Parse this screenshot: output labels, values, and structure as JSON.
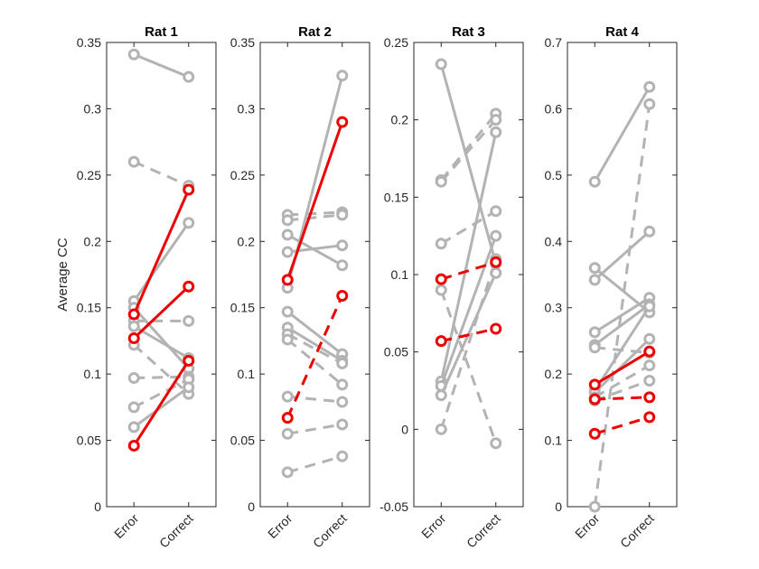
{
  "figure": {
    "ylabel": "Average CC"
  },
  "colors": {
    "highlight": "#ee0000",
    "other": "#b3b3b3",
    "axis": "#262626"
  },
  "chart_data": [
    {
      "type": "line",
      "title": "Rat 1",
      "categories": [
        "Error",
        "Correct"
      ],
      "ylim": [
        0,
        0.35
      ],
      "yticks": [
        0,
        0.05,
        0.1,
        0.15,
        0.2,
        0.25,
        0.3,
        0.35
      ],
      "ytick_labels": [
        "0",
        "0.05",
        "0.1",
        "0.15",
        "0.2",
        "0.25",
        "0.3",
        "0.35"
      ],
      "series": [
        {
          "values": [
            0.341,
            0.324
          ],
          "color": "gray",
          "style": "solid"
        },
        {
          "values": [
            0.26,
            0.242
          ],
          "color": "gray",
          "style": "dashed"
        },
        {
          "values": [
            0.155,
            0.214
          ],
          "color": "gray",
          "style": "solid"
        },
        {
          "values": [
            0.15,
            0.104
          ],
          "color": "gray",
          "style": "solid"
        },
        {
          "values": [
            0.14,
            0.14
          ],
          "color": "gray",
          "style": "dashed"
        },
        {
          "values": [
            0.136,
            0.112
          ],
          "color": "gray",
          "style": "solid"
        },
        {
          "values": [
            0.122,
            0.085
          ],
          "color": "gray",
          "style": "dashed"
        },
        {
          "values": [
            0.097,
            0.098
          ],
          "color": "gray",
          "style": "dashed"
        },
        {
          "values": [
            0.075,
            0.096
          ],
          "color": "gray",
          "style": "dashed"
        },
        {
          "values": [
            0.06,
            0.09
          ],
          "color": "gray",
          "style": "solid"
        },
        {
          "values": [
            0.145,
            0.239
          ],
          "color": "red",
          "style": "solid"
        },
        {
          "values": [
            0.127,
            0.166
          ],
          "color": "red",
          "style": "solid"
        },
        {
          "values": [
            0.046,
            0.11
          ],
          "color": "red",
          "style": "solid"
        }
      ]
    },
    {
      "type": "line",
      "title": "Rat 2",
      "categories": [
        "Error",
        "Correct"
      ],
      "ylim": [
        0,
        0.35
      ],
      "yticks": [
        0,
        0.05,
        0.1,
        0.15,
        0.2,
        0.25,
        0.3,
        0.35
      ],
      "ytick_labels": [
        "0",
        "0.05",
        "0.1",
        "0.15",
        "0.2",
        "0.25",
        "0.3",
        "0.35"
      ],
      "series": [
        {
          "values": [
            0.22,
            0.222
          ],
          "color": "gray",
          "style": "dashed"
        },
        {
          "values": [
            0.216,
            0.22
          ],
          "color": "gray",
          "style": "dashed"
        },
        {
          "values": [
            0.205,
            0.182
          ],
          "color": "gray",
          "style": "solid"
        },
        {
          "values": [
            0.192,
            0.197
          ],
          "color": "gray",
          "style": "solid"
        },
        {
          "values": [
            0.165,
            0.325
          ],
          "color": "gray",
          "style": "solid"
        },
        {
          "values": [
            0.147,
            0.115
          ],
          "color": "gray",
          "style": "solid"
        },
        {
          "values": [
            0.135,
            0.11
          ],
          "color": "gray",
          "style": "solid"
        },
        {
          "values": [
            0.13,
            0.108
          ],
          "color": "gray",
          "style": "dashed"
        },
        {
          "values": [
            0.126,
            0.092
          ],
          "color": "gray",
          "style": "dashed"
        },
        {
          "values": [
            0.083,
            0.079
          ],
          "color": "gray",
          "style": "dashed"
        },
        {
          "values": [
            0.055,
            0.062
          ],
          "color": "gray",
          "style": "dashed"
        },
        {
          "values": [
            0.026,
            0.038
          ],
          "color": "gray",
          "style": "dashed"
        },
        {
          "values": [
            0.171,
            0.29
          ],
          "color": "red",
          "style": "solid"
        },
        {
          "values": [
            0.067,
            0.159
          ],
          "color": "red",
          "style": "dashed"
        }
      ]
    },
    {
      "type": "line",
      "title": "Rat 3",
      "categories": [
        "Error",
        "Correct"
      ],
      "ylim": [
        -0.05,
        0.25
      ],
      "yticks": [
        -0.05,
        0,
        0.05,
        0.1,
        0.15,
        0.2,
        0.25
      ],
      "ytick_labels": [
        "-0.05",
        "0",
        "0.05",
        "0.1",
        "0.15",
        "0.2",
        "0.25"
      ],
      "series": [
        {
          "values": [
            0.236,
            0.107
          ],
          "color": "gray",
          "style": "solid"
        },
        {
          "values": [
            0.161,
            0.204
          ],
          "color": "gray",
          "style": "dashed"
        },
        {
          "values": [
            0.16,
            0.2
          ],
          "color": "gray",
          "style": "dashed"
        },
        {
          "values": [
            0.12,
            0.141
          ],
          "color": "gray",
          "style": "dashed"
        },
        {
          "values": [
            0.09,
            -0.009
          ],
          "color": "gray",
          "style": "dashed"
        },
        {
          "values": [
            0.031,
            0.192
          ],
          "color": "gray",
          "style": "solid"
        },
        {
          "values": [
            0.028,
            0.125
          ],
          "color": "gray",
          "style": "solid"
        },
        {
          "values": [
            0.022,
            0.101
          ],
          "color": "gray",
          "style": "solid"
        },
        {
          "values": [
            0.0,
            0.11
          ],
          "color": "gray",
          "style": "dashed"
        },
        {
          "values": [
            0.097,
            0.108
          ],
          "color": "red",
          "style": "dashed"
        },
        {
          "values": [
            0.057,
            0.065
          ],
          "color": "red",
          "style": "dashed"
        }
      ]
    },
    {
      "type": "line",
      "title": "Rat 4",
      "categories": [
        "Error",
        "Correct"
      ],
      "ylim": [
        0,
        0.7
      ],
      "yticks": [
        0,
        0.1,
        0.2,
        0.3,
        0.4,
        0.5,
        0.6,
        0.7
      ],
      "ytick_labels": [
        "0",
        "0.1",
        "0.2",
        "0.3",
        "0.4",
        "0.5",
        "0.6",
        "0.7"
      ],
      "series": [
        {
          "values": [
            0.49,
            0.633
          ],
          "color": "gray",
          "style": "solid"
        },
        {
          "values": [
            0.36,
            0.293
          ],
          "color": "gray",
          "style": "solid"
        },
        {
          "values": [
            0.342,
            0.415
          ],
          "color": "gray",
          "style": "solid"
        },
        {
          "values": [
            0.263,
            0.315
          ],
          "color": "gray",
          "style": "solid"
        },
        {
          "values": [
            0.244,
            0.305
          ],
          "color": "gray",
          "style": "solid"
        },
        {
          "values": [
            0.24,
            0.232
          ],
          "color": "gray",
          "style": "dashed"
        },
        {
          "values": [
            0.175,
            0.302
          ],
          "color": "gray",
          "style": "solid"
        },
        {
          "values": [
            0.172,
            0.253
          ],
          "color": "gray",
          "style": "solid"
        },
        {
          "values": [
            0.165,
            0.213
          ],
          "color": "gray",
          "style": "dashed"
        },
        {
          "values": [
            0.16,
            0.19
          ],
          "color": "gray",
          "style": "dashed"
        },
        {
          "values": [
            0.0,
            0.607
          ],
          "color": "gray",
          "style": "dashed"
        },
        {
          "values": [
            0.184,
            0.234
          ],
          "color": "red",
          "style": "solid"
        },
        {
          "values": [
            0.162,
            0.165
          ],
          "color": "red",
          "style": "dashed"
        },
        {
          "values": [
            0.11,
            0.135
          ],
          "color": "red",
          "style": "dashed"
        }
      ]
    }
  ]
}
